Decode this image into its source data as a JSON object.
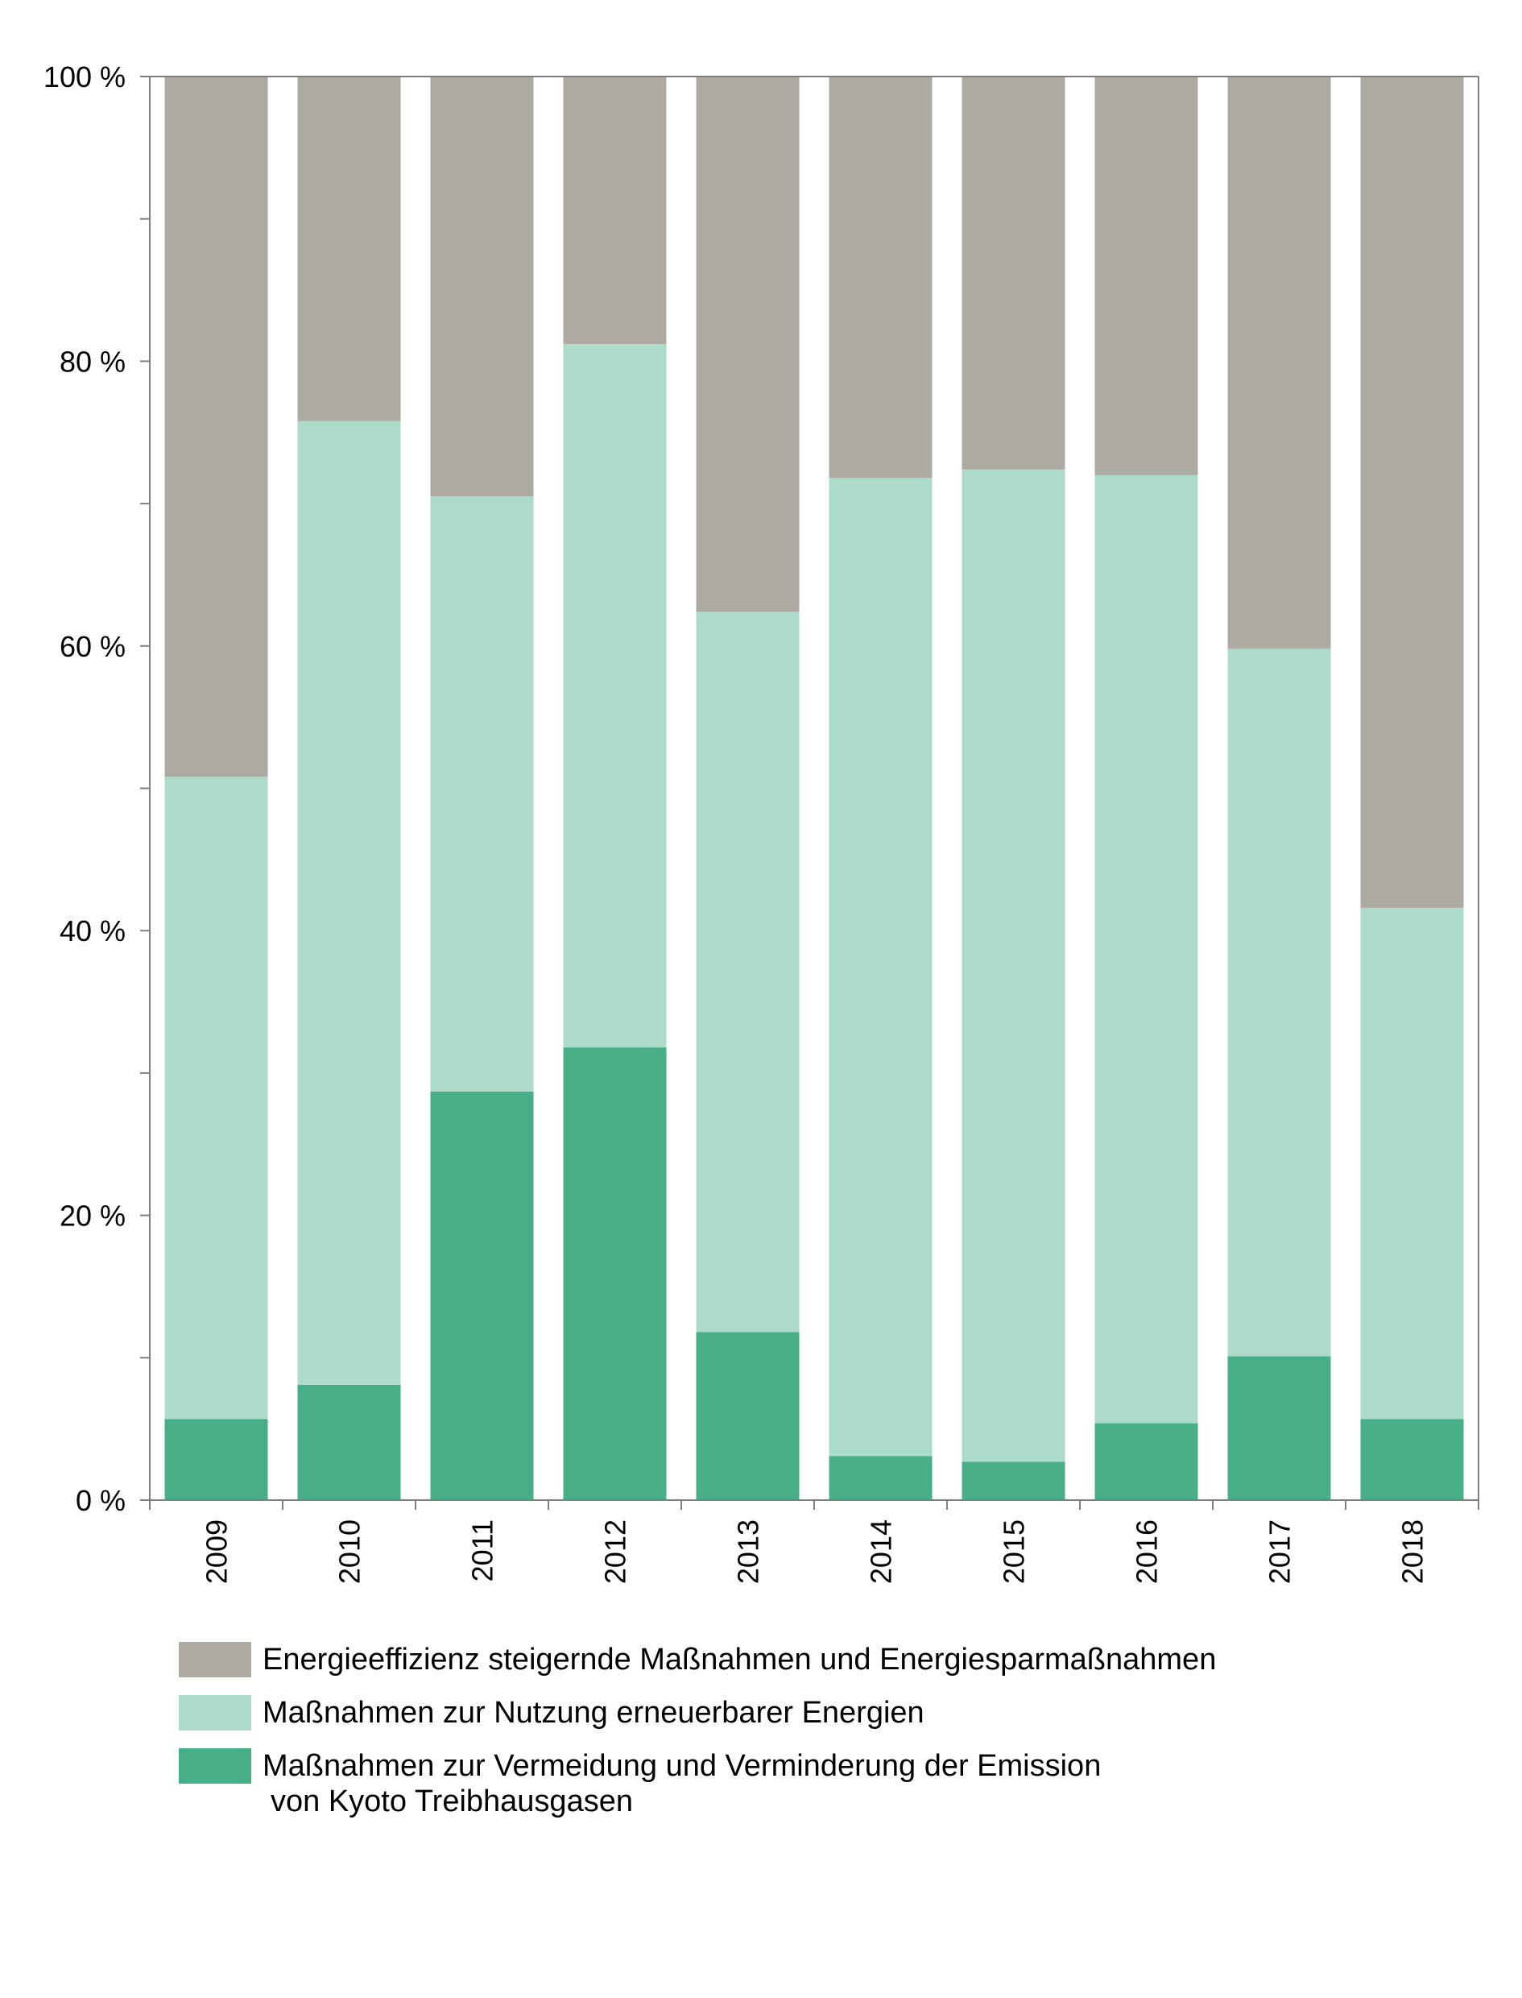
{
  "chart_data": {
    "type": "bar",
    "stacked": true,
    "categories": [
      "2009",
      "2010",
      "2011",
      "2012",
      "2013",
      "2014",
      "2015",
      "2016",
      "2017",
      "2018"
    ],
    "series": [
      {
        "name": "Maßnahmen zur Vermeidung und Verminderung der Emission von Kyoto Treibhausgasen",
        "color": "#47ae87",
        "values": [
          5.7,
          8.1,
          28.7,
          31.8,
          11.8,
          3.1,
          2.7,
          5.4,
          10.1,
          5.7
        ]
      },
      {
        "name": "Maßnahmen zur Nutzung erneuerbarer Energien",
        "color": "#acdbcb",
        "values": [
          45.1,
          67.7,
          41.8,
          49.4,
          50.6,
          68.7,
          69.7,
          66.6,
          49.7,
          35.9
        ]
      },
      {
        "name": "Energieeffizienz steigernde Maßnahmen und Energiesparmaßnahmen",
        "color": "#adaaa2",
        "values": [
          49.2,
          24.2,
          29.5,
          18.8,
          37.6,
          28.2,
          27.6,
          28.0,
          40.2,
          58.4
        ]
      }
    ],
    "yticks": [
      0,
      20,
      40,
      60,
      80,
      100
    ],
    "ytick_labels": [
      "0 %",
      "20 %",
      "40 %",
      "60 %",
      "80 %",
      "100 %"
    ],
    "ylim": [
      0,
      100
    ],
    "grid": false,
    "title": "",
    "xlabel": "",
    "ylabel": "",
    "legend_placement": "bottom"
  },
  "legend": {
    "items": [
      {
        "label": "Energieeffizienz steigernde Maßnahmen und Energiesparmaßnahmen",
        "color": "#adaaa2"
      },
      {
        "label": "Maßnahmen zur Nutzung erneuerbarer Energien",
        "color": "#acdbcb"
      },
      {
        "label": "Maßnahmen zur Vermeidung und Verminderung der Emission",
        "label_cont": "von Kyoto Treibhausgasen",
        "color": "#47ae87"
      }
    ]
  }
}
